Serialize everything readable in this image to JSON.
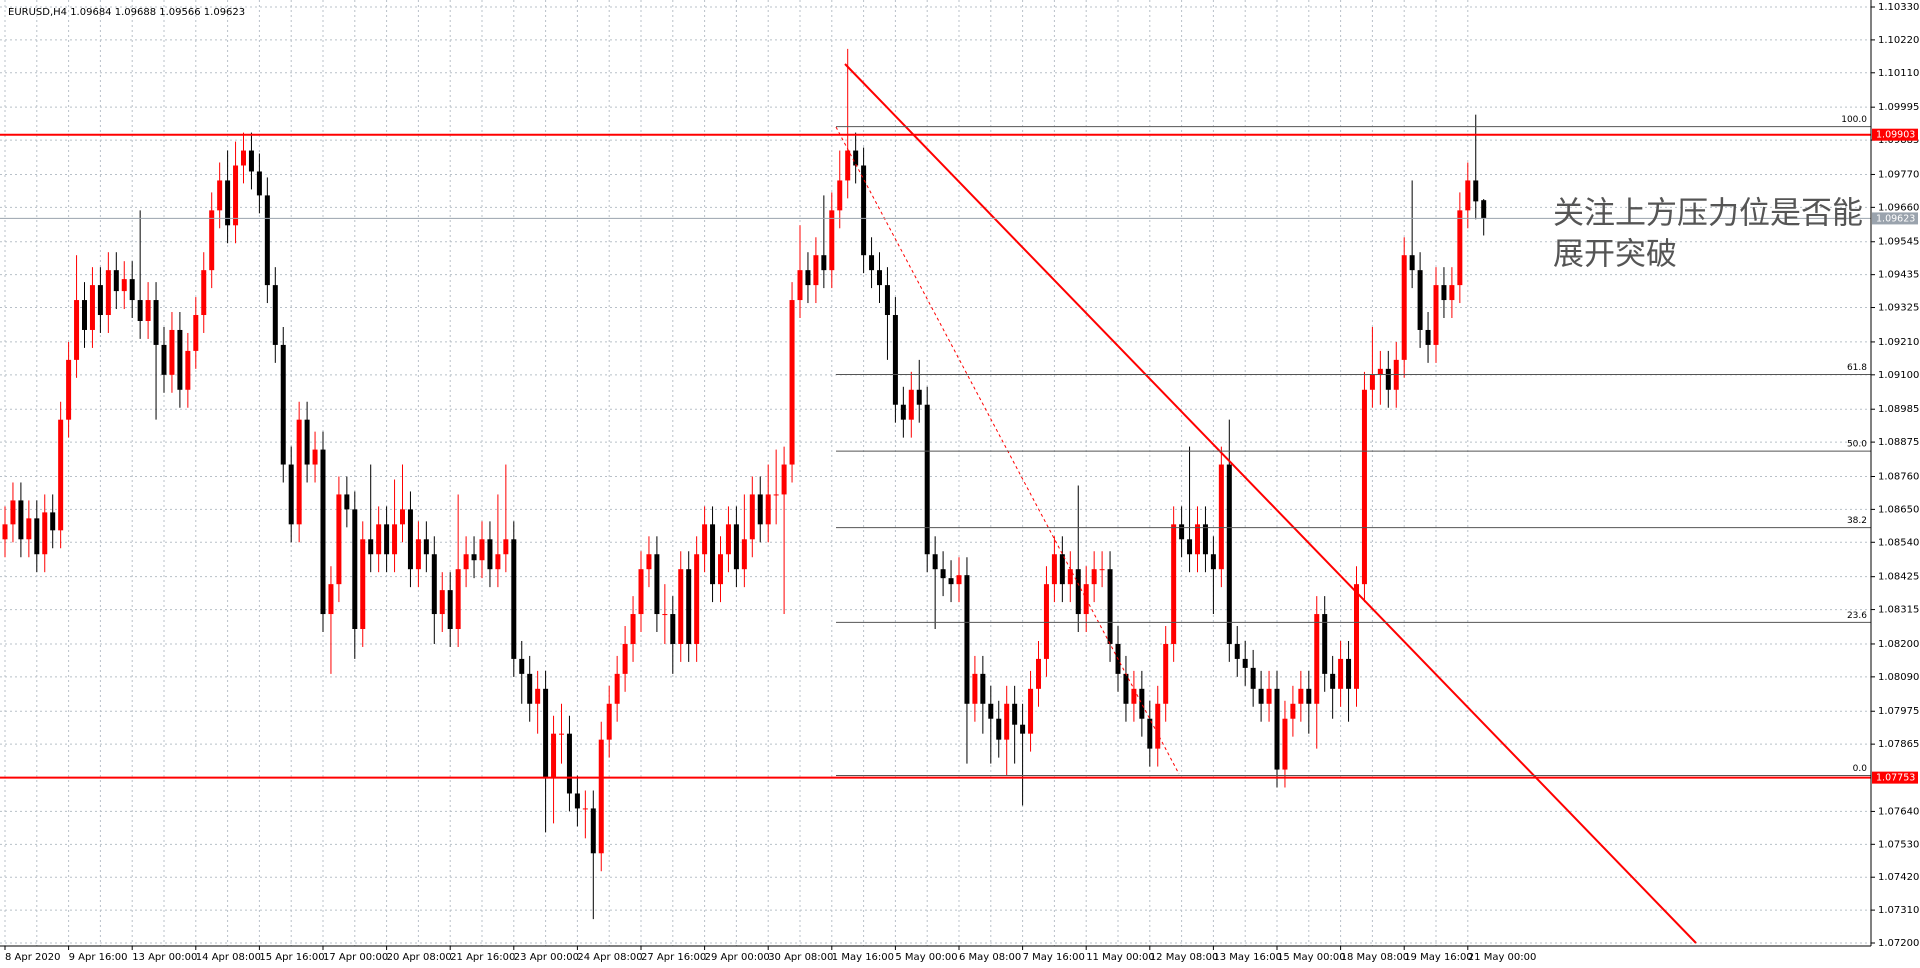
{
  "chart_data": {
    "type": "candlestick",
    "header": "EURUSD,H4  1.09684 1.09688 1.09566 1.09623",
    "annotation": [
      "关注上方压力位是否能",
      "展开突破"
    ],
    "up_color": "#ff0000",
    "down_color": "#000000",
    "grid": true,
    "ylim": [
      1.072,
      1.1033
    ],
    "yticks": [
      {
        "value": 1.1033,
        "label": "1.10330"
      },
      {
        "value": 1.1022,
        "label": "1.10220"
      },
      {
        "value": 1.1011,
        "label": "1.10110"
      },
      {
        "value": 1.09995,
        "label": "1.09995"
      },
      {
        "value": 1.09885,
        "label": "1.09885"
      },
      {
        "value": 1.0977,
        "label": "1.09770"
      },
      {
        "value": 1.0966,
        "label": "1.09660"
      },
      {
        "value": 1.09545,
        "label": "1.09545"
      },
      {
        "value": 1.09435,
        "label": "1.09435"
      },
      {
        "value": 1.09325,
        "label": "1.09325"
      },
      {
        "value": 1.0921,
        "label": "1.09210"
      },
      {
        "value": 1.091,
        "label": "1.09100"
      },
      {
        "value": 1.08985,
        "label": "1.08985"
      },
      {
        "value": 1.08875,
        "label": "1.08875"
      },
      {
        "value": 1.0876,
        "label": "1.08760"
      },
      {
        "value": 1.0865,
        "label": "1.08650"
      },
      {
        "value": 1.0854,
        "label": "1.08540"
      },
      {
        "value": 1.08425,
        "label": "1.08425"
      },
      {
        "value": 1.08315,
        "label": "1.08315"
      },
      {
        "value": 1.082,
        "label": "1.08200"
      },
      {
        "value": 1.0809,
        "label": "1.08090"
      },
      {
        "value": 1.07975,
        "label": "1.07975"
      },
      {
        "value": 1.07865,
        "label": "1.07865"
      },
      {
        "value": 1.0764,
        "label": "1.07640"
      },
      {
        "value": 1.0753,
        "label": "1.07530"
      },
      {
        "value": 1.0742,
        "label": "1.07420"
      },
      {
        "value": 1.0731,
        "label": "1.07310"
      },
      {
        "value": 1.072,
        "label": "1.07200"
      }
    ],
    "levels": [
      {
        "value": 1.09903,
        "color": "#ff0000"
      },
      {
        "value": 1.09623,
        "color": "#9aa3ad"
      },
      {
        "value": 1.07753,
        "color": "#ff0000"
      }
    ],
    "fib": {
      "high": 1.0993,
      "low": 1.0776,
      "levels": [
        {
          "value": 100,
          "label": "100.0"
        },
        61.8,
        {
          "value": 50,
          "label": "50.0"
        },
        38.2,
        23.6,
        {
          "value": 0,
          "label": "0.0"
        }
      ]
    },
    "categories": [
      "8 Apr 2020",
      null,
      null,
      null,
      null,
      null,
      null,
      null,
      "9 Apr 16:00",
      null,
      null,
      null,
      null,
      null,
      null,
      null,
      "13 Apr 00:00",
      null,
      null,
      null,
      null,
      null,
      null,
      null,
      "14 Apr 08:00",
      null,
      null,
      null,
      null,
      null,
      null,
      null,
      "15 Apr 16:00",
      null,
      null,
      null,
      null,
      null,
      null,
      null,
      "17 Apr 00:00",
      null,
      null,
      null,
      null,
      null,
      null,
      null,
      "20 Apr 08:00",
      null,
      null,
      null,
      null,
      null,
      null,
      null,
      "21 Apr 16:00",
      null,
      null,
      null,
      null,
      null,
      null,
      null,
      "23 Apr 00:00",
      null,
      null,
      null,
      null,
      null,
      null,
      null,
      "24 Apr 08:00",
      null,
      null,
      null,
      null,
      null,
      null,
      null,
      "27 Apr 16:00",
      null,
      null,
      null,
      null,
      null,
      null,
      null,
      "29 Apr 00:00",
      null,
      null,
      null,
      null,
      null,
      null,
      null,
      "30 Apr 08:00",
      null,
      null,
      null,
      null,
      null,
      null,
      null,
      "1 May 16:00",
      null,
      null,
      null,
      null,
      null,
      null,
      null,
      "5 May 00:00",
      null,
      null,
      null,
      null,
      null,
      null,
      null,
      "6 May 08:00",
      null,
      null,
      null,
      null,
      null,
      null,
      null,
      "7 May 16:00",
      null,
      null,
      null,
      null,
      null,
      null,
      null,
      "11 May 00:00",
      null,
      null,
      null,
      null,
      null,
      null,
      null,
      "12 May 08:00",
      null,
      null,
      null,
      null,
      null,
      null,
      null,
      "13 May 16:00",
      null,
      null,
      null,
      null,
      null,
      null,
      null,
      "15 May 00:00",
      null,
      null,
      null,
      null,
      null,
      null,
      null,
      "18 May 08:00",
      null,
      null,
      null,
      null,
      null,
      null,
      null,
      "19 May 16:00",
      null,
      null,
      null,
      null,
      null,
      null,
      null,
      "21 May 00:00",
      null,
      null
    ],
    "open": [
      1.0855,
      1.086,
      1.0868,
      1.0855,
      1.0862,
      1.085,
      1.0864,
      1.0858,
      1.0895,
      1.0915,
      1.0935,
      1.0925,
      1.094,
      1.093,
      1.0945,
      1.0938,
      1.0942,
      1.0935,
      1.0928,
      1.0935,
      1.092,
      1.091,
      1.0925,
      1.0905,
      1.0918,
      1.093,
      1.0945,
      1.0965,
      1.0975,
      1.096,
      1.098,
      1.0985,
      1.0978,
      1.097,
      1.094,
      1.092,
      1.088,
      1.086,
      1.0895,
      1.088,
      1.0885,
      1.083,
      1.084,
      1.087,
      1.0865,
      1.0825,
      1.0855,
      1.085,
      1.086,
      1.085,
      1.086,
      1.0865,
      1.0845,
      1.0855,
      1.085,
      1.083,
      1.0838,
      1.0825,
      1.0845,
      1.085,
      1.0848,
      1.0855,
      1.0845,
      1.085,
      1.0855,
      1.0815,
      1.081,
      1.08,
      1.0805,
      1.0775,
      1.079,
      1.079,
      1.077,
      1.0765,
      1.0765,
      1.075,
      1.0788,
      1.08,
      1.081,
      1.082,
      1.083,
      1.0845,
      1.085,
      1.083,
      1.083,
      1.082,
      1.0845,
      1.082,
      1.085,
      1.086,
      1.084,
      1.085,
      1.086,
      1.0845,
      1.0855,
      1.087,
      1.086,
      1.087,
      1.087,
      1.088,
      1.0935,
      1.0945,
      1.094,
      1.095,
      1.0945,
      1.0965,
      1.0975,
      1.0985,
      1.098,
      1.095,
      1.0945,
      1.094,
      1.093,
      1.09,
      1.0895,
      1.0905,
      1.09,
      1.085,
      1.0845,
      1.0842,
      1.084,
      1.0843,
      1.08,
      1.081,
      1.08,
      1.0795,
      1.0788,
      1.08,
      1.0793,
      1.079,
      1.0805,
      1.0815,
      1.084,
      1.085,
      1.084,
      1.0845,
      1.083,
      1.084,
      1.0845,
      1.0845,
      1.082,
      1.081,
      1.08,
      1.0805,
      1.0795,
      1.0785,
      1.08,
      1.082,
      1.086,
      1.0855,
      1.085,
      1.086,
      1.085,
      1.0845,
      1.088,
      1.082,
      1.0815,
      1.0812,
      1.0805,
      1.08,
      1.0805,
      1.0778,
      1.0795,
      1.08,
      1.0805,
      1.08,
      1.083,
      1.081,
      1.0805,
      1.0815,
      1.0805,
      1.084,
      1.0905,
      1.091,
      1.0912,
      1.0905,
      1.0915,
      1.095,
      1.0945,
      1.0925,
      1.092,
      1.094,
      1.0935,
      1.094,
      1.0965,
      1.0975,
      1.09684
    ],
    "high": [
      1.0866,
      1.0874,
      1.0874,
      1.0868,
      1.0868,
      1.087,
      1.087,
      1.0901,
      1.0921,
      1.095,
      1.0941,
      1.0946,
      1.0946,
      1.0951,
      1.0951,
      1.0948,
      1.0948,
      1.0965,
      1.0941,
      1.0941,
      1.0926,
      1.0931,
      1.0931,
      1.0924,
      1.0936,
      1.0951,
      1.0971,
      1.0981,
      1.0985,
      1.0988,
      1.0991,
      1.0991,
      1.0984,
      1.0976,
      1.0946,
      1.0926,
      1.0886,
      1.0901,
      1.0901,
      1.0891,
      1.0891,
      1.0846,
      1.0876,
      1.0876,
      1.0871,
      1.0861,
      1.088,
      1.0866,
      1.0866,
      1.0875,
      1.088,
      1.0871,
      1.0861,
      1.0861,
      1.0856,
      1.0844,
      1.0844,
      1.087,
      1.0856,
      1.0856,
      1.0861,
      1.0861,
      1.087,
      1.088,
      1.0861,
      1.0821,
      1.0816,
      1.0811,
      1.0811,
      1.0796,
      1.08,
      1.0796,
      1.0776,
      1.0771,
      1.0771,
      1.0794,
      1.0806,
      1.0816,
      1.0826,
      1.0836,
      1.0851,
      1.0856,
      1.0856,
      1.084,
      1.0836,
      1.0851,
      1.0851,
      1.0856,
      1.0866,
      1.0866,
      1.0856,
      1.0866,
      1.0866,
      1.087,
      1.0876,
      1.0876,
      1.088,
      1.0885,
      1.0886,
      1.0941,
      1.096,
      1.0951,
      1.0956,
      1.097,
      1.0971,
      1.0985,
      1.1019,
      1.0991,
      1.0986,
      1.0956,
      1.0951,
      1.0946,
      1.0936,
      1.0906,
      1.0911,
      1.0915,
      1.0906,
      1.0856,
      1.0851,
      1.0848,
      1.0849,
      1.0849,
      1.0816,
      1.0816,
      1.0806,
      1.0801,
      1.0806,
      1.0806,
      1.08,
      1.0811,
      1.0821,
      1.0846,
      1.0856,
      1.0856,
      1.0851,
      1.0873,
      1.0846,
      1.0851,
      1.0851,
      1.0851,
      1.0826,
      1.0816,
      1.0811,
      1.0811,
      1.0801,
      1.0806,
      1.0826,
      1.0866,
      1.0866,
      1.0886,
      1.0866,
      1.0866,
      1.0856,
      1.0886,
      1.0895,
      1.0826,
      1.0821,
      1.0818,
      1.0811,
      1.0811,
      1.0811,
      1.0801,
      1.0806,
      1.0811,
      1.0811,
      1.0836,
      1.0836,
      1.0816,
      1.0821,
      1.0821,
      1.0846,
      1.0911,
      1.0926,
      1.0918,
      1.0918,
      1.0921,
      1.0956,
      1.0975,
      1.0951,
      1.0931,
      1.0946,
      1.0946,
      1.0946,
      1.0971,
      1.0981,
      1.0997,
      1.09688
    ],
    "low": [
      1.0849,
      1.0854,
      1.0849,
      1.0849,
      1.0844,
      1.0844,
      1.0852,
      1.0852,
      1.0889,
      1.0909,
      1.0919,
      1.0919,
      1.0924,
      1.0924,
      1.0932,
      1.0932,
      1.0929,
      1.0922,
      1.0922,
      1.0895,
      1.0904,
      1.0904,
      1.0899,
      1.0899,
      1.0912,
      1.0924,
      1.0939,
      1.0959,
      1.0954,
      1.0954,
      1.0974,
      1.0972,
      1.0964,
      1.0934,
      1.0914,
      1.0874,
      1.0854,
      1.0854,
      1.0874,
      1.0874,
      1.0824,
      1.081,
      1.0834,
      1.0859,
      1.0815,
      1.0819,
      1.0844,
      1.0844,
      1.0844,
      1.0844,
      1.0854,
      1.0839,
      1.0839,
      1.0844,
      1.082,
      1.0824,
      1.0819,
      1.0819,
      1.0839,
      1.0842,
      1.0842,
      1.0839,
      1.0839,
      1.0844,
      1.0809,
      1.08,
      1.0794,
      1.079,
      1.0757,
      1.076,
      1.078,
      1.0764,
      1.0759,
      1.0755,
      1.0728,
      1.0744,
      1.0782,
      1.0794,
      1.0804,
      1.0814,
      1.0824,
      1.0839,
      1.0824,
      1.082,
      1.081,
      1.0814,
      1.0814,
      1.0814,
      1.0844,
      1.0834,
      1.0834,
      1.0844,
      1.0839,
      1.0839,
      1.0849,
      1.0854,
      1.0854,
      1.086,
      1.083,
      1.0874,
      1.0929,
      1.0934,
      1.0934,
      1.0939,
      1.0939,
      1.0959,
      1.0969,
      1.0974,
      1.0944,
      1.0939,
      1.0934,
      1.0915,
      1.0894,
      1.0889,
      1.0889,
      1.0894,
      1.0844,
      1.0825,
      1.0836,
      1.0834,
      1.0834,
      1.078,
      1.0794,
      1.079,
      1.078,
      1.0782,
      1.0776,
      1.078,
      1.0766,
      1.0784,
      1.0799,
      1.0809,
      1.0834,
      1.0834,
      1.0834,
      1.0824,
      1.0824,
      1.0834,
      1.0839,
      1.0814,
      1.0804,
      1.0794,
      1.0794,
      1.0789,
      1.0779,
      1.0779,
      1.0794,
      1.0814,
      1.0849,
      1.0844,
      1.0844,
      1.0844,
      1.083,
      1.0839,
      1.0814,
      1.0809,
      1.0806,
      1.0799,
      1.0794,
      1.0794,
      1.0772,
      1.0772,
      1.0789,
      1.0794,
      1.079,
      1.0785,
      1.0804,
      1.0795,
      1.0799,
      1.0794,
      1.0799,
      1.0834,
      1.0899,
      1.09,
      1.0899,
      1.0899,
      1.0909,
      1.0939,
      1.0919,
      1.0914,
      1.0914,
      1.0929,
      1.0929,
      1.0934,
      1.0959,
      1.0962,
      1.09566
    ],
    "close": [
      1.086,
      1.0868,
      1.0855,
      1.0862,
      1.085,
      1.0864,
      1.0858,
      1.0895,
      1.0915,
      1.0935,
      1.0925,
      1.094,
      1.093,
      1.0945,
      1.0938,
      1.0942,
      1.0935,
      1.0928,
      1.0935,
      1.092,
      1.091,
      1.0925,
      1.0905,
      1.0918,
      1.093,
      1.0945,
      1.0965,
      1.0975,
      1.096,
      1.098,
      1.0985,
      1.0978,
      1.097,
      1.094,
      1.092,
      1.088,
      1.086,
      1.0895,
      1.088,
      1.0885,
      1.083,
      1.084,
      1.087,
      1.0865,
      1.0825,
      1.0855,
      1.085,
      1.086,
      1.085,
      1.086,
      1.0865,
      1.0845,
      1.0855,
      1.085,
      1.083,
      1.0838,
      1.0825,
      1.0845,
      1.085,
      1.0848,
      1.0855,
      1.0845,
      1.085,
      1.0855,
      1.0815,
      1.081,
      1.08,
      1.0805,
      1.0775,
      1.079,
      1.079,
      1.077,
      1.0765,
      1.0765,
      1.075,
      1.0788,
      1.08,
      1.081,
      1.082,
      1.083,
      1.0845,
      1.085,
      1.083,
      1.083,
      1.082,
      1.0845,
      1.082,
      1.085,
      1.086,
      1.084,
      1.085,
      1.086,
      1.0845,
      1.0855,
      1.087,
      1.086,
      1.087,
      1.087,
      1.088,
      1.0935,
      1.0945,
      1.094,
      1.095,
      1.0945,
      1.0965,
      1.0975,
      1.0985,
      1.098,
      1.095,
      1.0945,
      1.094,
      1.093,
      1.09,
      1.0895,
      1.0905,
      1.09,
      1.085,
      1.0845,
      1.0842,
      1.084,
      1.0843,
      1.08,
      1.081,
      1.08,
      1.0795,
      1.0788,
      1.08,
      1.0793,
      1.079,
      1.0805,
      1.0815,
      1.084,
      1.085,
      1.084,
      1.0845,
      1.083,
      1.084,
      1.0845,
      1.0845,
      1.082,
      1.081,
      1.08,
      1.0805,
      1.0795,
      1.0785,
      1.08,
      1.082,
      1.086,
      1.0855,
      1.085,
      1.086,
      1.085,
      1.0845,
      1.088,
      1.082,
      1.0815,
      1.0812,
      1.0805,
      1.08,
      1.0805,
      1.0778,
      1.0795,
      1.08,
      1.0805,
      1.08,
      1.083,
      1.081,
      1.0805,
      1.0815,
      1.0805,
      1.084,
      1.0905,
      1.091,
      1.0912,
      1.0905,
      1.0915,
      1.095,
      1.0945,
      1.0925,
      1.092,
      1.094,
      1.0935,
      1.094,
      1.0965,
      1.0975,
      1.0968,
      1.09623
    ]
  }
}
